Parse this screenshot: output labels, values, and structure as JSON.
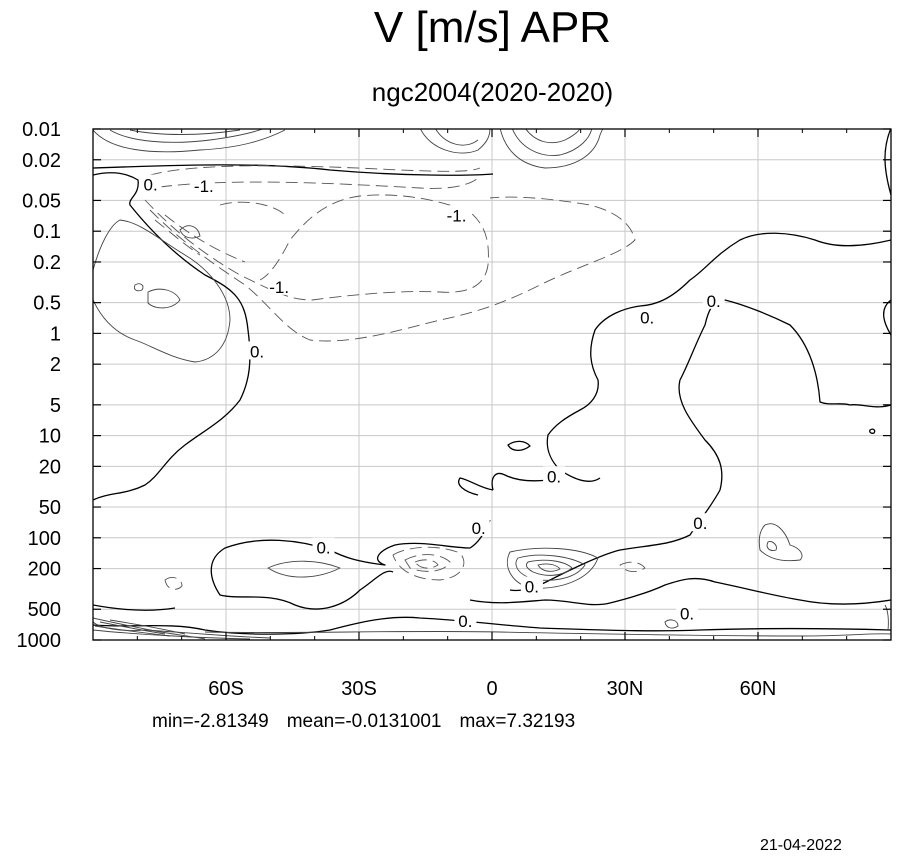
{
  "title": "V [m/s] APR",
  "subtitle": "ngc2004(2020-2020)",
  "stats": {
    "min": "min=-2.81349",
    "mean": "mean=-0.0131001",
    "max": "max=7.32193"
  },
  "date": "21-04-2022",
  "chart_data": {
    "type": "contour",
    "variable": "V",
    "units": "m/s",
    "month": "APR",
    "x_axis": {
      "range": [
        -90,
        90
      ],
      "ticks": [
        {
          "value": -60,
          "label": "60S"
        },
        {
          "value": -30,
          "label": "30S"
        },
        {
          "value": 0,
          "label": "0"
        },
        {
          "value": 30,
          "label": "30N"
        },
        {
          "value": 60,
          "label": "60N"
        }
      ]
    },
    "y_axis": {
      "scale": "log",
      "reversed": true,
      "range": [
        0.01,
        1000
      ],
      "ticks": [
        "0.01",
        "0.02",
        "0.05",
        "0.1",
        "0.2",
        "0.5",
        "1",
        "2",
        "5",
        "10",
        "20",
        "50",
        "100",
        "200",
        "500",
        "1000"
      ]
    },
    "grid": true,
    "contour_labels": [
      {
        "text": "0.",
        "lat": -77,
        "p": 0.035
      },
      {
        "text": "-1.",
        "lat": -65,
        "p": 0.036
      },
      {
        "text": "-1.",
        "lat": -8,
        "p": 0.07
      },
      {
        "text": "-1.",
        "lat": -48,
        "p": 0.35
      },
      {
        "text": "0.",
        "lat": -53,
        "p": 1.5
      },
      {
        "text": "0.",
        "lat": 35,
        "p": 0.7
      },
      {
        "text": "0.",
        "lat": 50,
        "p": 0.48
      },
      {
        "text": "0.",
        "lat": 14,
        "p": 25
      },
      {
        "text": "0.",
        "lat": -3,
        "p": 80
      },
      {
        "text": "0.",
        "lat": 47,
        "p": 72
      },
      {
        "text": "0.",
        "lat": -38,
        "p": 125
      },
      {
        "text": "0.",
        "lat": 9,
        "p": 300
      },
      {
        "text": "0.",
        "lat": -6,
        "p": 650
      },
      {
        "text": "0.",
        "lat": 44,
        "p": 550
      }
    ]
  }
}
